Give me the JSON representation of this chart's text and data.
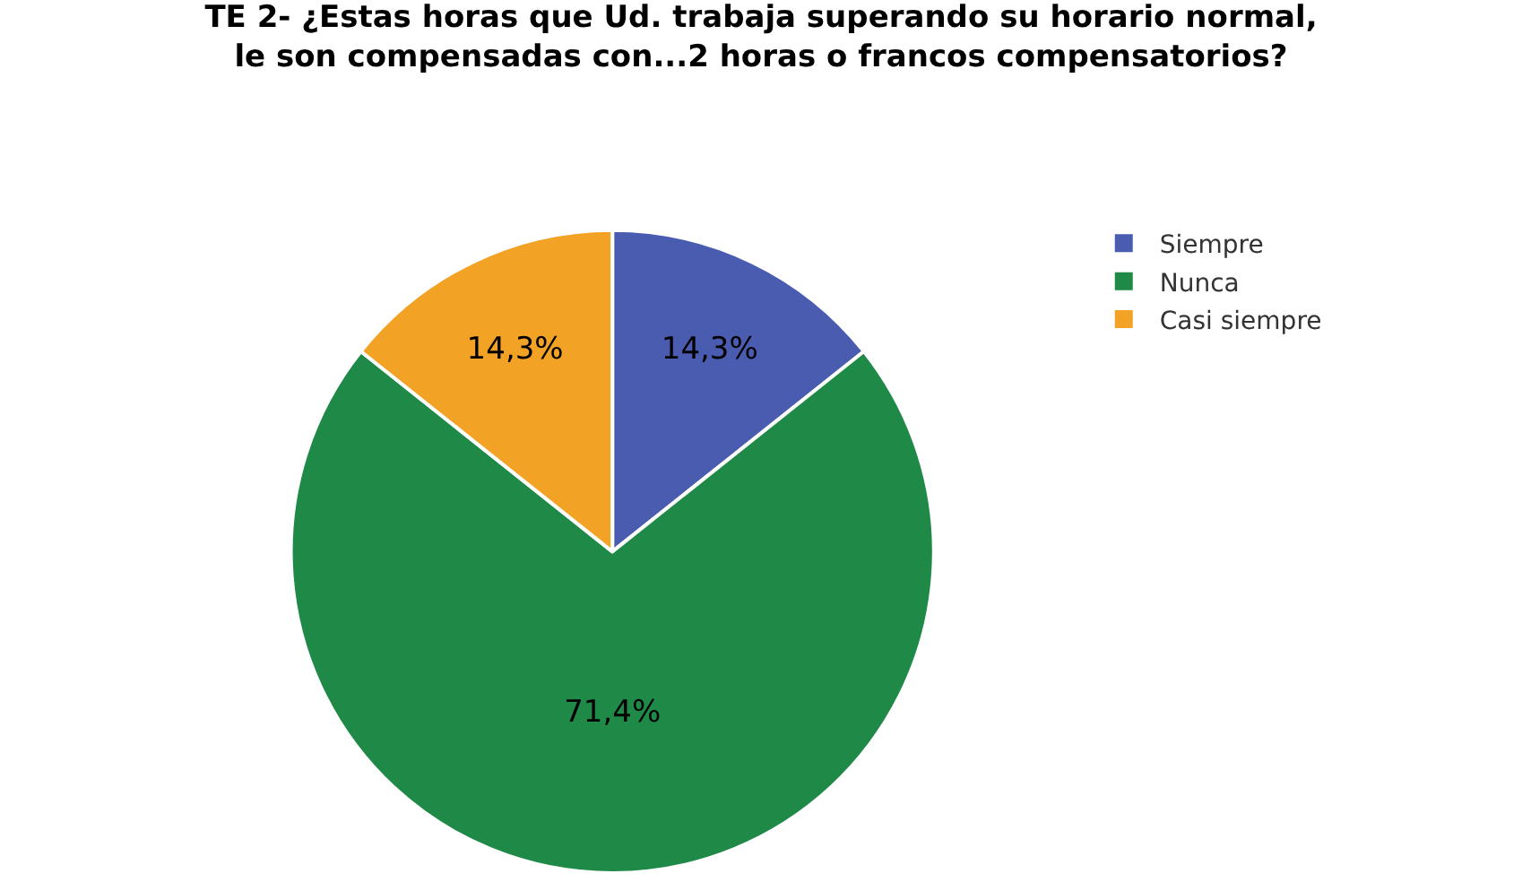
{
  "chart_data": {
    "type": "pie",
    "title": "TE 2- ¿Estas horas que Ud. trabaja superando su horario normal, le son compensadas con...2 horas o francos compensatorios?",
    "categories": [
      "Siempre",
      "Nunca",
      "Casi siempre"
    ],
    "values": [
      14.3,
      71.4,
      14.3
    ],
    "colors": [
      "#4a5cb0",
      "#1f8a47",
      "#f2a225"
    ],
    "value_labels": [
      "14,3%",
      "71,4%",
      "14,3%"
    ],
    "legend": "top right"
  }
}
